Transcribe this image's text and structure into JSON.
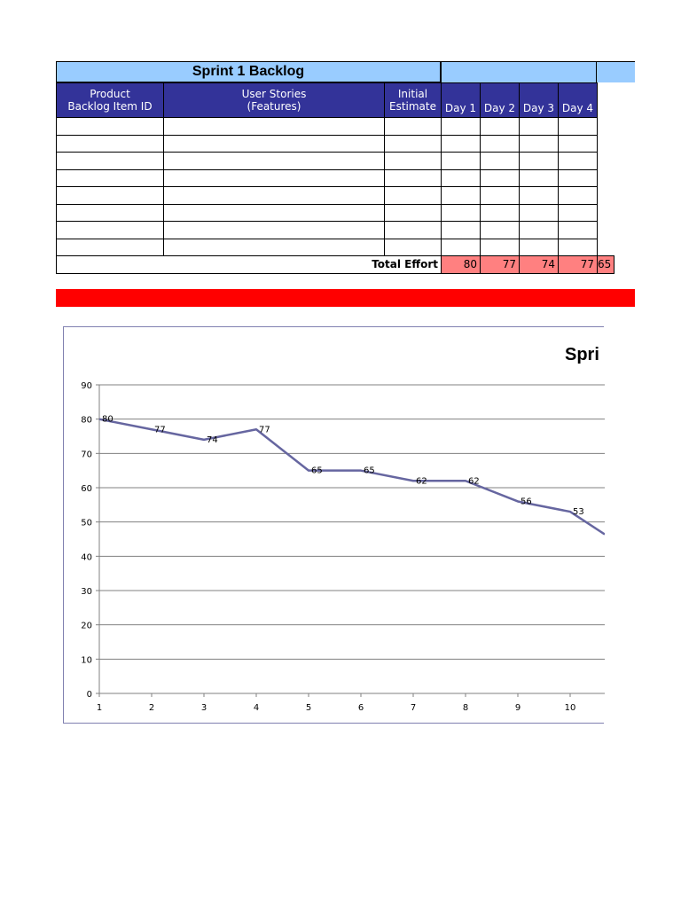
{
  "backlog": {
    "title": "Sprint 1 Backlog",
    "headers": {
      "item_id_line1": "Product",
      "item_id_line2": "Backlog Item ID",
      "stories_line1": "User Stories",
      "stories_line2": "(Features)",
      "estimate_line1": "Initial",
      "estimate_line2": "Estimate",
      "days": [
        "Day 1",
        "Day 2",
        "Day 3",
        "Day 4"
      ]
    },
    "empty_rows": 8,
    "total_label": "Total Effort",
    "totals": [
      "80",
      "77",
      "74",
      "77",
      "65"
    ],
    "colors": {
      "title_bg": "#99ccff",
      "header_bg": "#333399",
      "total_bg": "#ff8080",
      "divider": "#ff0000"
    }
  },
  "chart_data": {
    "type": "line",
    "title": "Spri",
    "x": [
      1,
      2,
      3,
      4,
      5,
      6,
      7,
      8,
      9,
      10
    ],
    "series": [
      {
        "values": [
          80,
          77,
          74,
          77,
          65,
          65,
          62,
          62,
          56,
          53
        ],
        "color": "#6666a0"
      }
    ],
    "partial_next_value": 43,
    "data_labels": [
      "80",
      "77",
      "74",
      "77",
      "65",
      "65",
      "62",
      "62",
      "56",
      "53"
    ],
    "ylim": [
      0,
      90
    ],
    "yticks": [
      0,
      10,
      20,
      30,
      40,
      50,
      60,
      70,
      80,
      90
    ],
    "xticks": [
      "1",
      "2",
      "3",
      "4",
      "5",
      "6",
      "7",
      "8",
      "9",
      "10"
    ],
    "grid": true
  }
}
